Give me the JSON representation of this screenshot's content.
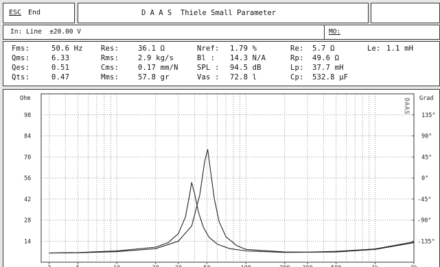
{
  "title_bar": {
    "esc_key": "ESC",
    "esc_label": "End",
    "title": "D A A S  Thiele Small Parameter"
  },
  "input_bar": {
    "input_label": "In: Line  ±20.00 V",
    "mo_label": "MO:"
  },
  "parameters": {
    "col1": [
      {
        "name": "Fms:",
        "value": "50.6 Hz"
      },
      {
        "name": "Qms:",
        "value": "6.33"
      },
      {
        "name": "Qes:",
        "value": "0.51"
      },
      {
        "name": "Qts:",
        "value": "0.47"
      }
    ],
    "col2": [
      {
        "name": "Res:",
        "value": "36.1 Ω"
      },
      {
        "name": "Rms:",
        "value": "2.9 kg/s"
      },
      {
        "name": "Cms:",
        "value": "0.17 mm/N"
      },
      {
        "name": "Mms:",
        "value": "57.8 gr"
      }
    ],
    "col3": [
      {
        "name": "Nref:",
        "value": "1.79 %"
      },
      {
        "name": "Bl :",
        "value": "14.3 N/A"
      },
      {
        "name": "SPL :",
        "value": "94.5 dB"
      },
      {
        "name": "Vas :",
        "value": "72.8 l"
      }
    ],
    "col4": [
      {
        "name": "Re:",
        "value": "5.7 Ω"
      },
      {
        "name": "Rp:",
        "value": "49.6 Ω"
      },
      {
        "name": "Lp:",
        "value": "37.7 mH"
      },
      {
        "name": "Cp:",
        "value": "532.8 µF"
      }
    ],
    "col5": [
      {
        "name": "Le:",
        "value": "1.1 mH"
      }
    ]
  },
  "plot": {
    "left_axis_title": "Ohm",
    "right_axis_title": "Grad",
    "watermark": "DAAS"
  },
  "chart_data": {
    "type": "line",
    "x_scale": "log",
    "xlim": [
      2.6,
      2000
    ],
    "x_ticks": [
      {
        "value": 3,
        "label": "3"
      },
      {
        "value": 5,
        "label": "5"
      },
      {
        "value": 10,
        "label": "10"
      },
      {
        "value": 20,
        "label": "20"
      },
      {
        "value": 30,
        "label": "30"
      },
      {
        "value": 50,
        "label": "50"
      },
      {
        "value": 100,
        "label": "100"
      },
      {
        "value": 200,
        "label": "200"
      },
      {
        "value": 300,
        "label": "300"
      },
      {
        "value": 500,
        "label": "500"
      },
      {
        "value": 1000,
        "label": "1k"
      },
      {
        "value": 2000,
        "label": "2k"
      }
    ],
    "left_ylim": [
      0,
      112
    ],
    "left_ticks": [
      14,
      28,
      42,
      56,
      70,
      84,
      98
    ],
    "right_ylim": [
      -180,
      180
    ],
    "right_ticks": [
      {
        "value": -135,
        "label": "-135°"
      },
      {
        "value": -90,
        "label": "-90°"
      },
      {
        "value": -45,
        "label": "-45°"
      },
      {
        "value": 0,
        "label": "0°"
      },
      {
        "value": 45,
        "label": "45°"
      },
      {
        "value": 90,
        "label": "90°"
      },
      {
        "value": 135,
        "label": "135°"
      }
    ],
    "grid": true,
    "series": [
      {
        "color": "#222222",
        "x": [
          3,
          5,
          10,
          20,
          30,
          38,
          44,
          48,
          50.6,
          53,
          57,
          62,
          70,
          85,
          100,
          200,
          300,
          500,
          1000,
          2000
        ],
        "y": [
          6.1,
          6.3,
          7.0,
          9.0,
          14,
          24,
          45,
          67,
          75,
          62,
          42,
          27,
          17,
          11,
          8.5,
          6.8,
          6.7,
          7.2,
          8.8,
          13.5
        ]
      },
      {
        "color": "#222222",
        "x": [
          3,
          5,
          10,
          20,
          25,
          30,
          34,
          36.5,
          38,
          40,
          43,
          47,
          52,
          60,
          75,
          100,
          200,
          500,
          1000,
          2000
        ],
        "y": [
          6.1,
          6.4,
          7.5,
          10,
          13,
          19,
          30,
          44,
          53,
          46,
          33,
          23,
          16.5,
          12,
          9,
          7.5,
          6.5,
          6.8,
          8.5,
          13
        ]
      }
    ]
  }
}
